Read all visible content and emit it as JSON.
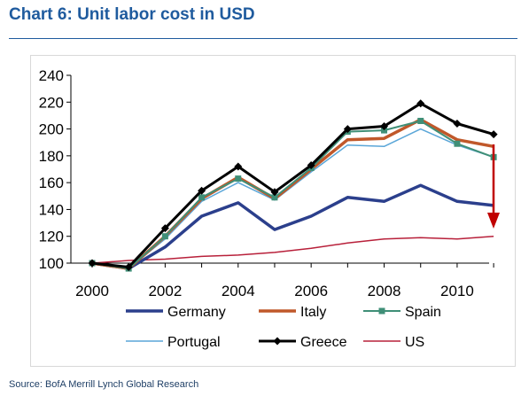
{
  "title": "Chart 6: Unit labor cost in USD",
  "source": "Source: BofA Merrill Lynch Global Research",
  "chart_data": {
    "type": "line",
    "x": [
      2000,
      2001,
      2002,
      2003,
      2004,
      2005,
      2006,
      2007,
      2008,
      2009,
      2010,
      2011
    ],
    "x_tick_labels": [
      "2000",
      "2002",
      "2004",
      "2006",
      "2008",
      "2010"
    ],
    "x_ticks": [
      2000,
      2002,
      2004,
      2006,
      2008,
      2010
    ],
    "ylim": [
      100,
      240
    ],
    "y_ticks": [
      100,
      120,
      140,
      160,
      180,
      200,
      220,
      240
    ],
    "grid": false,
    "legend_position": "bottom",
    "series": [
      {
        "name": "Germany",
        "color": "#2b3f8c",
        "width": 3.5,
        "marker": "none",
        "values": [
          100,
          96,
          112,
          135,
          145,
          125,
          135,
          149,
          146,
          158,
          146,
          143
        ]
      },
      {
        "name": "Italy",
        "color": "#c0582a",
        "width": 3.5,
        "marker": "none",
        "values": [
          100,
          96,
          120,
          148,
          164,
          148,
          170,
          192,
          193,
          207,
          192,
          187
        ]
      },
      {
        "name": "Spain",
        "color": "#3f8f77",
        "width": 2,
        "marker": "square",
        "values": [
          100,
          96,
          120,
          149,
          163,
          149,
          171,
          198,
          199,
          206,
          189,
          179
        ]
      },
      {
        "name": "Portugal",
        "color": "#5aa6d8",
        "width": 1.5,
        "marker": "none",
        "values": [
          100,
          96,
          118,
          146,
          160,
          147,
          168,
          188,
          187,
          200,
          188,
          179
        ]
      },
      {
        "name": "Greece",
        "color": "#000000",
        "width": 3,
        "marker": "diamond",
        "values": [
          100,
          97,
          126,
          154,
          172,
          153,
          173,
          200,
          202,
          219,
          204,
          196
        ]
      },
      {
        "name": "US",
        "color": "#b8203a",
        "width": 1.5,
        "marker": "none",
        "values": [
          100,
          102,
          103,
          105,
          106,
          108,
          111,
          115,
          118,
          119,
          118,
          120
        ]
      }
    ]
  }
}
